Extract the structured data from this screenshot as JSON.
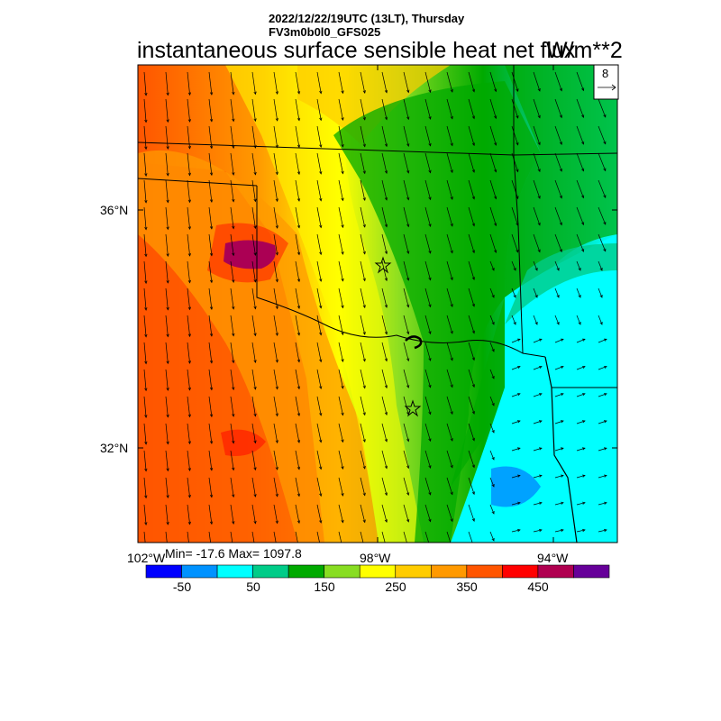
{
  "header": {
    "date_line": "2022/12/22/19UTC (13LT), Thursday",
    "model_line": "FV3m0b0l0_GFS025",
    "field_title": "instantaneous surface sensible heat net flux",
    "units": "W/m**2"
  },
  "stats": {
    "min_max_text": "Min= -17.6 Max= 1097.8",
    "min": -17.6,
    "max": 1097.8
  },
  "axes": {
    "lat_labels": [
      {
        "label": "36°N",
        "value": 36
      },
      {
        "label": "32°N",
        "value": 32
      }
    ],
    "lon_labels": [
      {
        "label": "102°W",
        "value": -102
      },
      {
        "label": "98°W",
        "value": -98
      },
      {
        "label": "94°W",
        "value": -94
      }
    ]
  },
  "vector_key": {
    "label": "8"
  },
  "colorbar": {
    "labels": [
      "-50",
      "50",
      "150",
      "250",
      "350",
      "450"
    ],
    "colors": [
      "#0000ff",
      "#0092ff",
      "#00ffff",
      "#00cc88",
      "#00aa00",
      "#88dd22",
      "#ffff00",
      "#ffcc00",
      "#ff9900",
      "#ff5500",
      "#ff0000",
      "#b00050",
      "#660099"
    ]
  },
  "map": {
    "lon_min": -102,
    "lon_max": -94,
    "lat_min": 30.4,
    "lat_max": 38.3
  }
}
